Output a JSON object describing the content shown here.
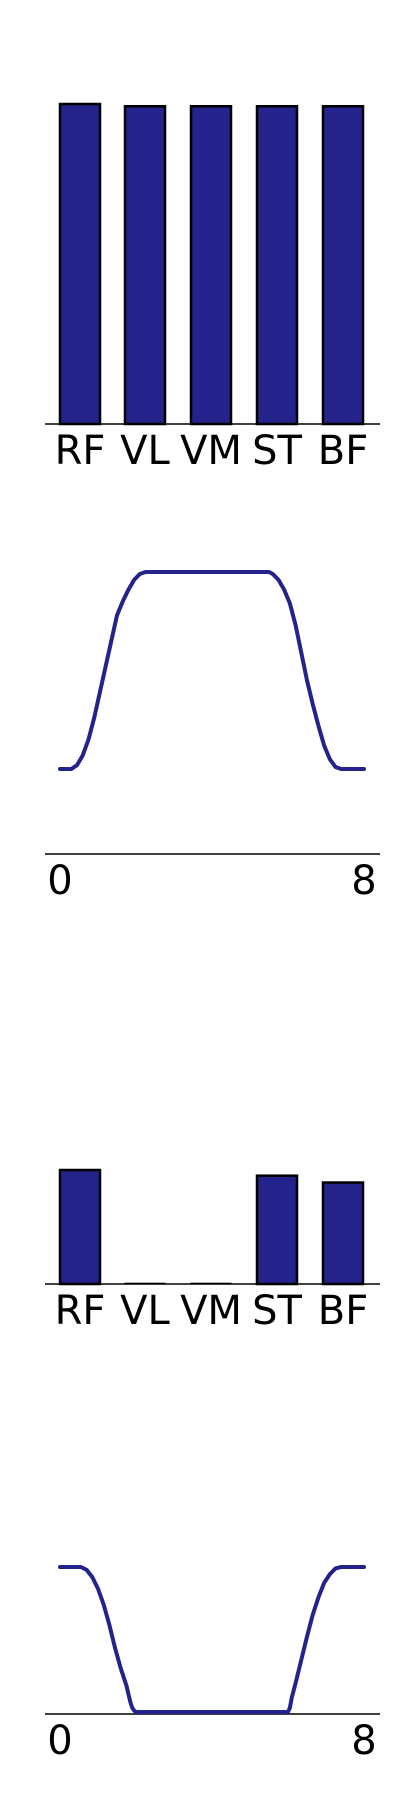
{
  "colors": {
    "bar_fill": "#23238B",
    "bar_edge": "#000000",
    "line": "#23238B",
    "axis": "#000000",
    "background": "#FFFFFF"
  },
  "chart_data": [
    {
      "type": "bar",
      "categories": [
        "RF",
        "VL",
        "VM",
        "ST",
        "BF"
      ],
      "values": [
        1.0,
        0.993,
        0.993,
        0.993,
        0.993
      ],
      "ylim": [
        0,
        1.0
      ],
      "grid": false,
      "title": "",
      "xlabel": "",
      "ylabel": ""
    },
    {
      "type": "line",
      "x": [
        0,
        0.3,
        0.45,
        0.6,
        0.75,
        0.9,
        1.05,
        1.2,
        1.35,
        1.5,
        1.65,
        1.8,
        1.95,
        2.1,
        2.25,
        2.4,
        2.5,
        2.6,
        3.0,
        4.0,
        5.0,
        5.4,
        5.5,
        5.6,
        5.75,
        5.9,
        6.05,
        6.2,
        6.35,
        6.5,
        6.65,
        6.8,
        6.95,
        7.1,
        7.25,
        7.4,
        7.55,
        7.7,
        8.0
      ],
      "y": [
        0,
        0,
        0.02,
        0.07,
        0.15,
        0.26,
        0.39,
        0.52,
        0.65,
        0.78,
        0.85,
        0.91,
        0.96,
        0.99,
        1.0,
        1.0,
        1.0,
        1.0,
        1.0,
        1.0,
        1.0,
        1.0,
        1.0,
        0.99,
        0.96,
        0.91,
        0.84,
        0.73,
        0.59,
        0.45,
        0.33,
        0.22,
        0.12,
        0.05,
        0.01,
        0,
        0,
        0,
        0
      ],
      "xticks": [
        "0",
        "8"
      ],
      "xlim": [
        0,
        8
      ],
      "ylim": [
        -0.43,
        1.0
      ],
      "grid": false,
      "title": "",
      "xlabel": "",
      "ylabel": ""
    },
    {
      "type": "bar",
      "categories": [
        "RF",
        "VL",
        "VM",
        "ST",
        "BF"
      ],
      "values": [
        1.0,
        0.0,
        0.0,
        0.95,
        0.89
      ],
      "ylim": [
        0,
        1.0
      ],
      "grid": false,
      "title": "",
      "xlabel": "",
      "ylabel": ""
    },
    {
      "type": "line",
      "x": [
        0,
        0.55,
        0.7,
        0.85,
        1.0,
        1.15,
        1.3,
        1.45,
        1.6,
        1.75,
        1.85,
        1.9,
        1.95,
        2.0,
        4.0,
        6.0,
        6.05,
        6.1,
        6.2,
        6.35,
        6.5,
        6.65,
        6.8,
        6.95,
        7.1,
        7.25,
        7.4,
        7.55,
        8.0
      ],
      "y": [
        1.0,
        1.0,
        0.98,
        0.93,
        0.85,
        0.74,
        0.6,
        0.44,
        0.3,
        0.18,
        0.07,
        0.03,
        0.01,
        0,
        0,
        0,
        0.03,
        0.1,
        0.2,
        0.36,
        0.52,
        0.67,
        0.79,
        0.89,
        0.95,
        0.99,
        1.0,
        1.0,
        1.0
      ],
      "xticks": [
        "0",
        "8"
      ],
      "xlim": [
        0,
        8
      ],
      "ylim": [
        0,
        1.0
      ],
      "grid": false,
      "title": "",
      "xlabel": "",
      "ylabel": ""
    }
  ]
}
